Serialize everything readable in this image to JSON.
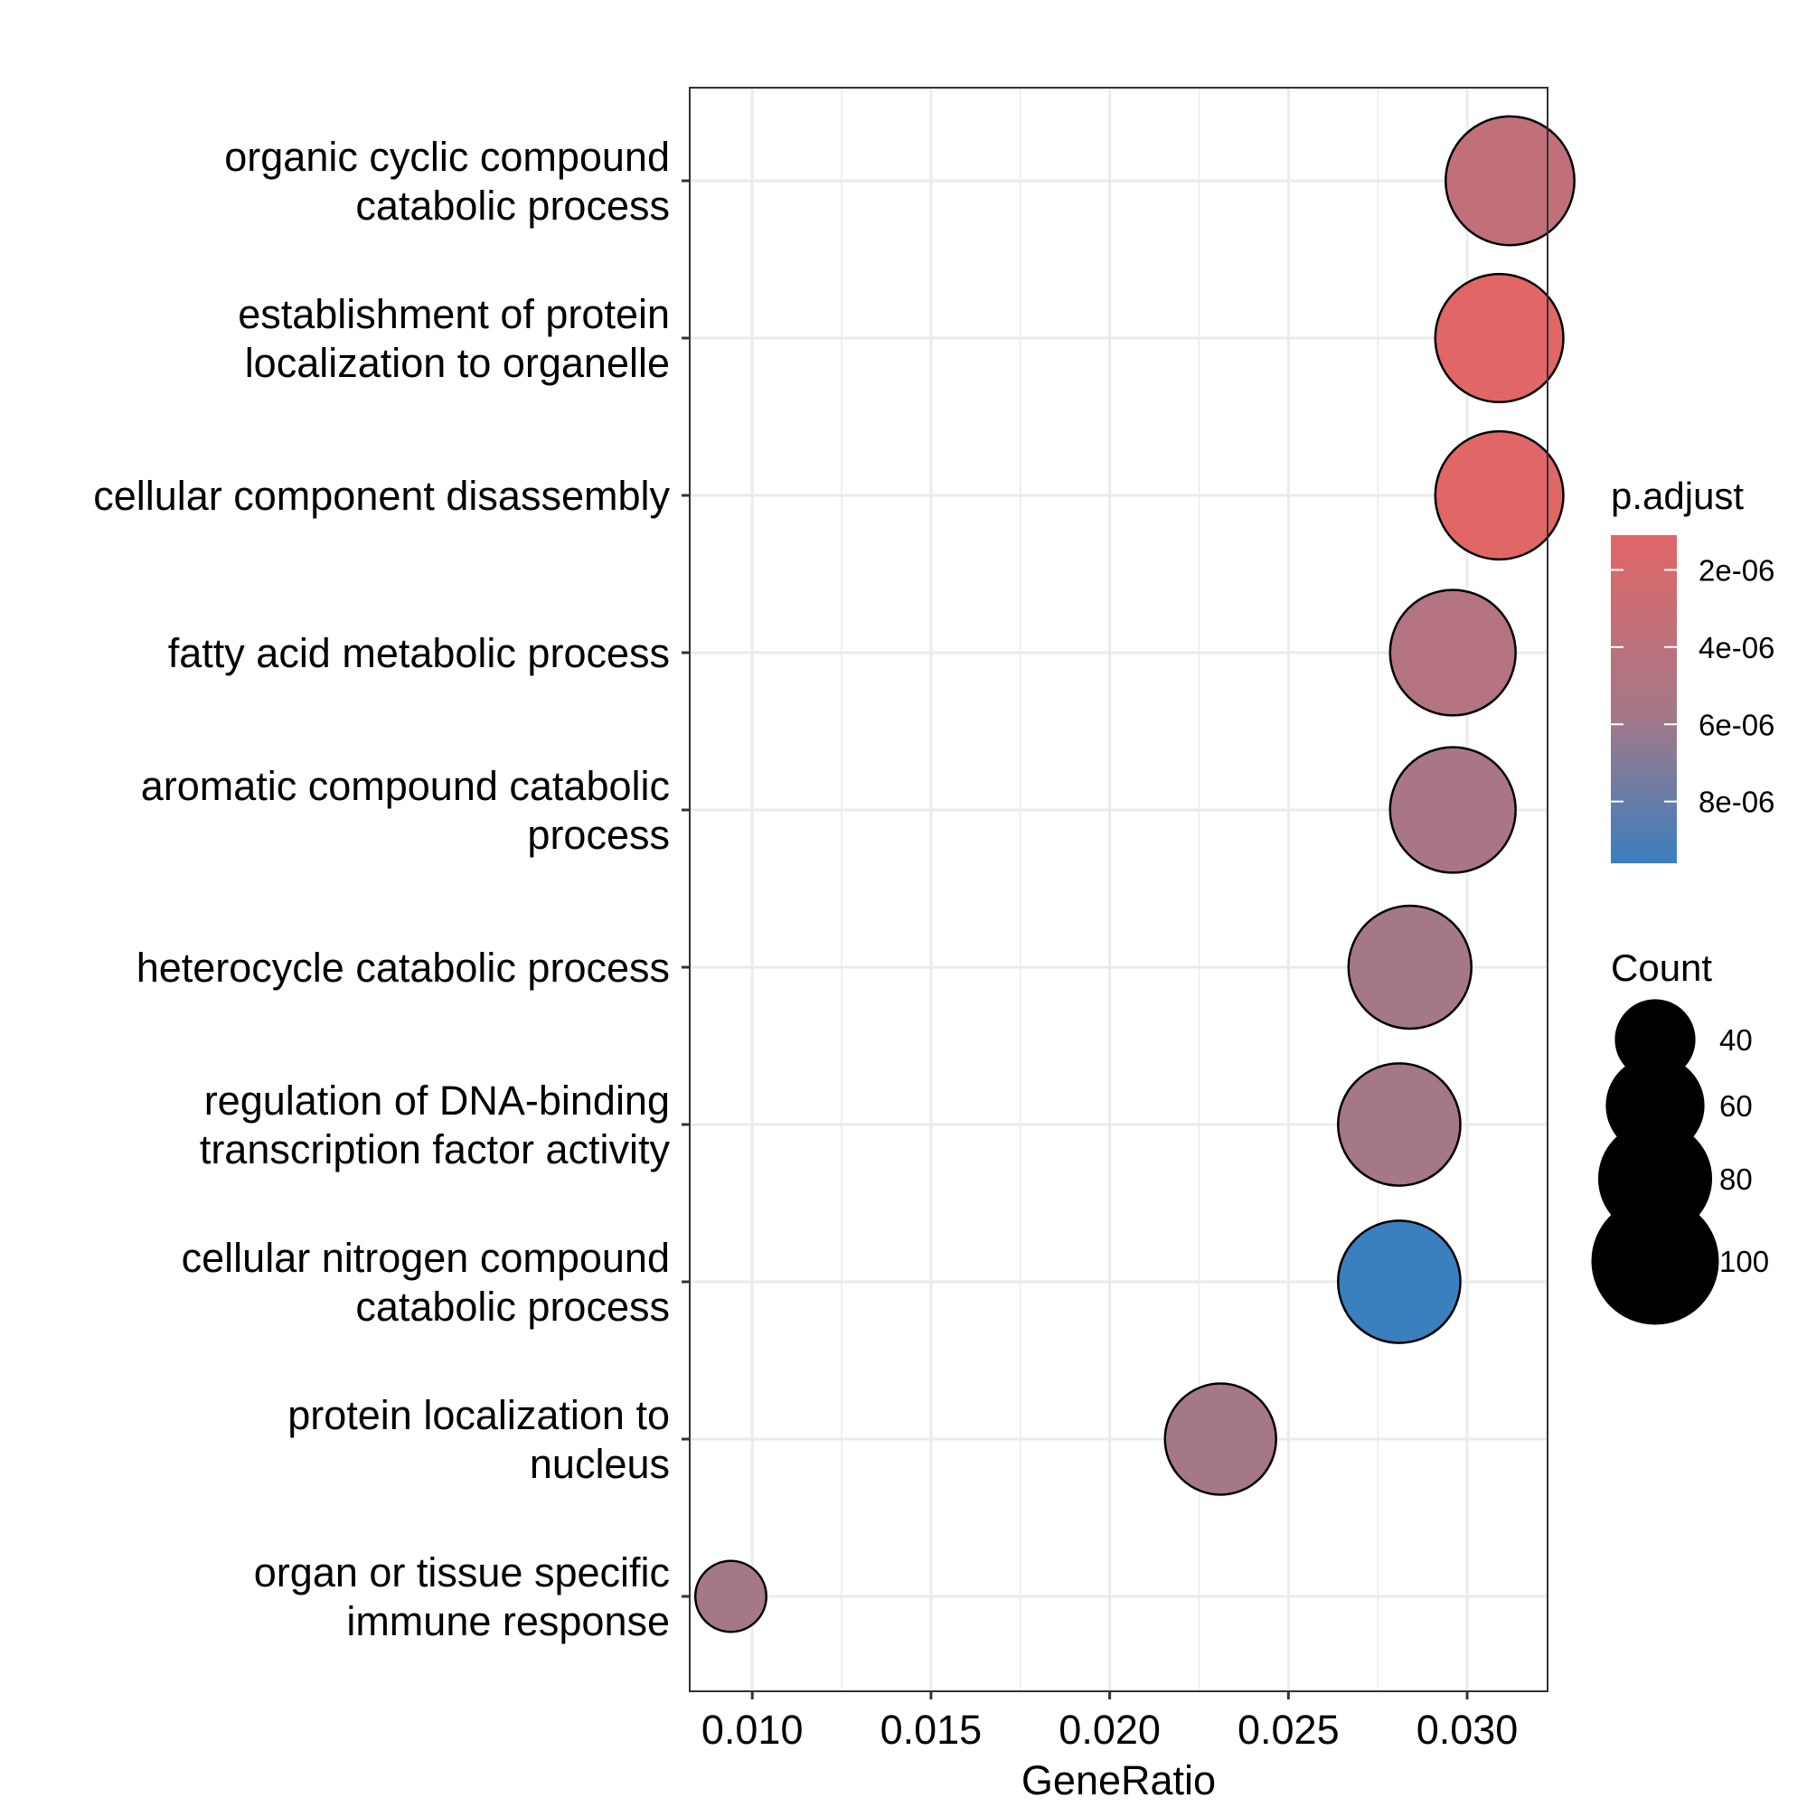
{
  "chart_data": {
    "type": "scatter",
    "xlabel": "GeneRatio",
    "ylabel": "",
    "xlim": [
      0.00825,
      0.03225
    ],
    "x_ticks": [
      "0.010",
      "0.015",
      "0.020",
      "0.025",
      "0.030"
    ],
    "x_tick_values": [
      0.01,
      0.015,
      0.02,
      0.025,
      0.03
    ],
    "grid": true,
    "categories": [
      [
        "organic cyclic compound",
        "catabolic process"
      ],
      [
        "establishment of protein",
        "localization to organelle"
      ],
      [
        "cellular component disassembly"
      ],
      [
        "fatty acid metabolic process"
      ],
      [
        "aromatic compound catabolic",
        "process"
      ],
      [
        "heterocycle catabolic process"
      ],
      [
        "regulation of DNA-binding",
        "transcription factor activity"
      ],
      [
        "cellular nitrogen compound",
        "catabolic process"
      ],
      [
        "protein localization to",
        "nucleus"
      ],
      [
        "organ or tissue specific",
        "immune response"
      ]
    ],
    "points": [
      {
        "gene_ratio": 0.0312,
        "count": 102,
        "p_adjust": 3.2e-06,
        "color": "#c1707a"
      },
      {
        "gene_ratio": 0.0309,
        "count": 101,
        "p_adjust": 1.2e-06,
        "color": "#e16666"
      },
      {
        "gene_ratio": 0.0309,
        "count": 101,
        "p_adjust": 1.1e-06,
        "color": "#e16666"
      },
      {
        "gene_ratio": 0.0296,
        "count": 97,
        "p_adjust": 4.1e-06,
        "color": "#b47380"
      },
      {
        "gene_ratio": 0.0296,
        "count": 97,
        "p_adjust": 4.8e-06,
        "color": "#a97686"
      },
      {
        "gene_ratio": 0.0284,
        "count": 93,
        "p_adjust": 5e-06,
        "color": "#a47888"
      },
      {
        "gene_ratio": 0.0281,
        "count": 92,
        "p_adjust": 5e-06,
        "color": "#a47888"
      },
      {
        "gene_ratio": 0.0281,
        "count": 92,
        "p_adjust": 9.1e-06,
        "color": "#3a7fbe"
      },
      {
        "gene_ratio": 0.0231,
        "count": 76,
        "p_adjust": 5e-06,
        "color": "#a47888"
      },
      {
        "gene_ratio": 0.0094,
        "count": 31,
        "p_adjust": 5e-06,
        "color": "#a47888"
      }
    ],
    "color_legend": {
      "title": "p.adjust",
      "labels": [
        "2e-06",
        "4e-06",
        "6e-06",
        "8e-06"
      ],
      "values": [
        2e-06,
        4e-06,
        6e-06,
        8e-06
      ],
      "range": [
        1.1e-06,
        9.6e-06
      ],
      "color_low": "#e16666",
      "color_high": "#3a7fbe"
    },
    "size_legend": {
      "title": "Count",
      "labels": [
        "40",
        "60",
        "80",
        "100"
      ],
      "values": [
        40,
        60,
        80,
        100
      ]
    }
  }
}
